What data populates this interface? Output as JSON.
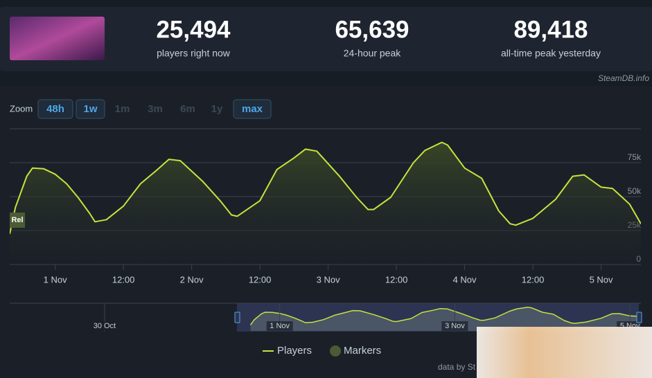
{
  "stats": [
    {
      "value": "25,494",
      "label": "players right now"
    },
    {
      "value": "65,639",
      "label": "24-hour peak"
    },
    {
      "value": "89,418",
      "label": "all-time peak yesterday"
    }
  ],
  "watermark": "SteamDB.info",
  "zoom": {
    "label": "Zoom",
    "buttons": [
      {
        "label": "48h",
        "enabled": true
      },
      {
        "label": "1w",
        "enabled": true
      },
      {
        "label": "1m",
        "enabled": false
      },
      {
        "label": "3m",
        "enabled": false
      },
      {
        "label": "6m",
        "enabled": false
      },
      {
        "label": "1y",
        "enabled": false
      },
      {
        "label": "max",
        "enabled": true
      }
    ]
  },
  "credit": "data by St",
  "chart_data": {
    "type": "line",
    "x": [
      -8,
      -7,
      -5,
      -4,
      -2,
      0,
      2,
      4,
      6,
      7,
      9,
      12,
      15,
      18,
      20,
      22,
      26,
      29,
      31,
      32,
      36,
      39,
      42,
      44,
      46,
      50,
      53,
      55,
      56,
      59,
      63,
      65,
      68,
      69,
      72,
      75,
      78,
      80,
      81,
      84,
      88,
      91,
      93,
      96,
      98,
      101,
      103
    ],
    "series": [
      {
        "name": "Players",
        "color": "#c6e33f",
        "values": [
          22500,
          42000,
          65000,
          71000,
          70500,
          66500,
          59500,
          49500,
          38000,
          31500,
          33000,
          43000,
          59500,
          70000,
          77500,
          76500,
          61000,
          47000,
          36500,
          35500,
          47000,
          70000,
          78500,
          85000,
          83500,
          65000,
          49500,
          40500,
          40500,
          49500,
          75000,
          84000,
          90000,
          88000,
          71000,
          63500,
          39500,
          30000,
          29000,
          34000,
          48000,
          65000,
          66000,
          57000,
          56000,
          44500,
          30000
        ]
      }
    ],
    "markers": {
      "name": "Markers",
      "color": "#4b5b33"
    },
    "annotations": [
      {
        "x": -8,
        "text": "Rel"
      }
    ],
    "xlim": [
      -8,
      103
    ],
    "xticks": [
      {
        "value": 0,
        "label": "1 Nov"
      },
      {
        "value": 12,
        "label": "12:00"
      },
      {
        "value": 24,
        "label": "2 Nov"
      },
      {
        "value": 36,
        "label": "12:00"
      },
      {
        "value": 48,
        "label": "3 Nov"
      },
      {
        "value": 60,
        "label": "12:00"
      },
      {
        "value": 72,
        "label": "4 Nov"
      },
      {
        "value": 84,
        "label": "12:00"
      },
      {
        "value": 96,
        "label": "5 Nov"
      }
    ],
    "ylim": [
      0,
      100000
    ],
    "yticks": [
      0,
      {
        "value": 25000,
        "label": "25k"
      },
      {
        "value": 50000,
        "label": "50k"
      },
      {
        "value": 75000,
        "label": "75k"
      }
    ],
    "grid": true,
    "navigator": {
      "xlim": [
        -74,
        99
      ],
      "xticks": [
        {
          "value": -48,
          "label": "30 Oct"
        },
        {
          "value": 0,
          "label": "1 Nov"
        },
        {
          "value": 48,
          "label": "3 Nov"
        },
        {
          "value": 96,
          "label": "5 Nov"
        }
      ]
    }
  }
}
